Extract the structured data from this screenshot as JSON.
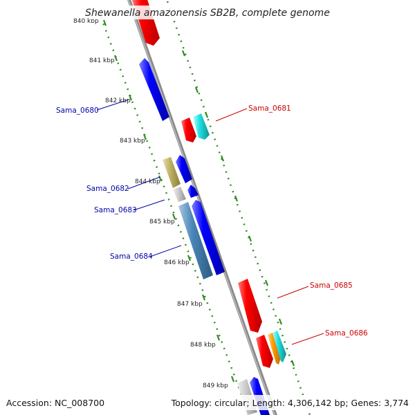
{
  "title": "Shewanella amazonensis SB2B, complete genome",
  "footer": {
    "accession": "Accession: NC_008700",
    "summary": "Topology: circular; Length: 4,306,142 bp; Genes: 3,774"
  },
  "colors": {
    "backbone": "#8a8a8a",
    "tick": "#2e8b1f",
    "forward_label": "#cc0000",
    "reverse_label": "#0000aa"
  },
  "kbp_marks": [
    "840 kbp",
    "841 kbp",
    "842 kbp",
    "843 kbp",
    "844 kbp",
    "845 kbp",
    "846 kbp",
    "847 kbp",
    "848 kbp",
    "849 kbp"
  ],
  "gene_labels": [
    {
      "text": "Sama_0680",
      "strand": "reverse"
    },
    {
      "text": "Sama_0681",
      "strand": "forward"
    },
    {
      "text": "Sama_0682",
      "strand": "reverse"
    },
    {
      "text": "Sama_0683",
      "strand": "reverse"
    },
    {
      "text": "Sama_0684",
      "strand": "reverse"
    },
    {
      "text": "Sama_0685",
      "strand": "forward"
    },
    {
      "text": "Sama_0686",
      "strand": "forward"
    }
  ]
}
